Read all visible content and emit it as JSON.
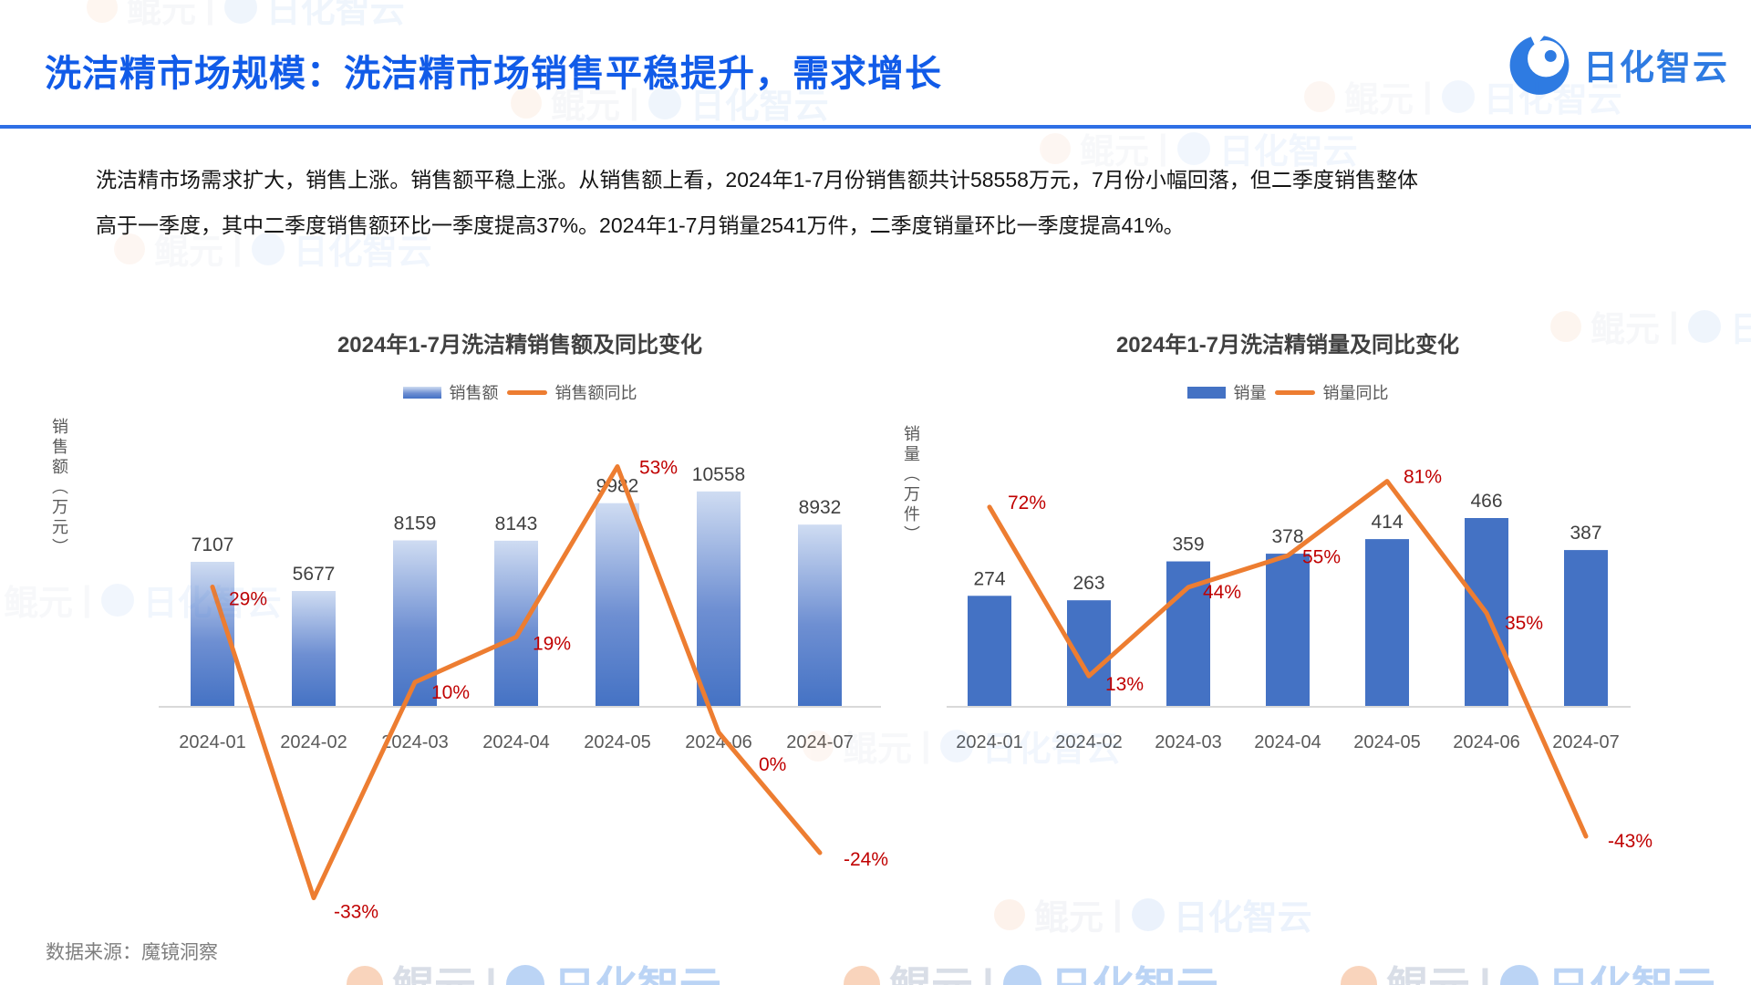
{
  "header": {
    "title": "洗洁精市场规模：洗洁精市场销售平稳提升，需求增长",
    "logo_text": "日化智云"
  },
  "intro": {
    "text": "洗洁精市场需求扩大，销售上涨。销售额平稳上涨。从销售额上看，2024年1-7月份销售额共计58558万元，7月份小幅回落，但二季度销售整体高于一季度，其中二季度销售额环比一季度提高37%。2024年1-7月销量2541万件，二季度销量环比一季度提高41%。"
  },
  "footer": {
    "source": "数据来源：魔镜洞察"
  },
  "watermark": {
    "brand_left": "鲲元",
    "divider": "|",
    "brand_right": "日化智云"
  },
  "colors": {
    "title_blue": "#115BE8",
    "header_rule_blue": "#2E6FE5",
    "logo_blue": "#2E7BE2",
    "bar_blue": "#4472C4",
    "bar_gradient_top": "#CFDCF2",
    "line_orange": "#ED7D31",
    "pct_label_red": "#C00000",
    "value_label_gray": "#404040",
    "tick_gray": "#595959",
    "axis_line_gray": "#D9D9D9",
    "footer_gray": "#7F7F7F"
  },
  "chart_data": [
    {
      "type": "bar",
      "combo": "bar+line",
      "title": "2024年1-7月洗洁精销售额及同比变化",
      "ylabel": "销售额（万元）",
      "xlabel": "",
      "categories": [
        "2024-01",
        "2024-02",
        "2024-03",
        "2024-04",
        "2024-05",
        "2024-06",
        "2024-07"
      ],
      "bar_series": {
        "name": "销售额",
        "values": [
          7107,
          5677,
          8159,
          8143,
          9982,
          10558,
          8932
        ]
      },
      "line_series": {
        "name": "销售额同比",
        "values_pct": [
          29,
          -33,
          10,
          19,
          53,
          0,
          -24
        ],
        "labels": [
          "29%",
          "-33%",
          "10%",
          "19%",
          "53%",
          "0%",
          "-24%"
        ]
      },
      "bar_gradient": true,
      "legend_position": "top",
      "gridlines": false
    },
    {
      "type": "bar",
      "combo": "bar+line",
      "title": "2024年1-7月洗洁精销量及同比变化",
      "ylabel": "销量（万件）",
      "xlabel": "",
      "categories": [
        "2024-01",
        "2024-02",
        "2024-03",
        "2024-04",
        "2024-05",
        "2024-06",
        "2024-07"
      ],
      "bar_series": {
        "name": "销量",
        "values": [
          274,
          263,
          359,
          378,
          414,
          466,
          387
        ]
      },
      "line_series": {
        "name": "销量同比",
        "values_pct": [
          72,
          13,
          44,
          55,
          81,
          35,
          -43
        ],
        "labels": [
          "72%",
          "13%",
          "44%",
          "55%",
          "81%",
          "35%",
          "-43%"
        ]
      },
      "bar_gradient": false,
      "legend_position": "top",
      "gridlines": false
    }
  ]
}
